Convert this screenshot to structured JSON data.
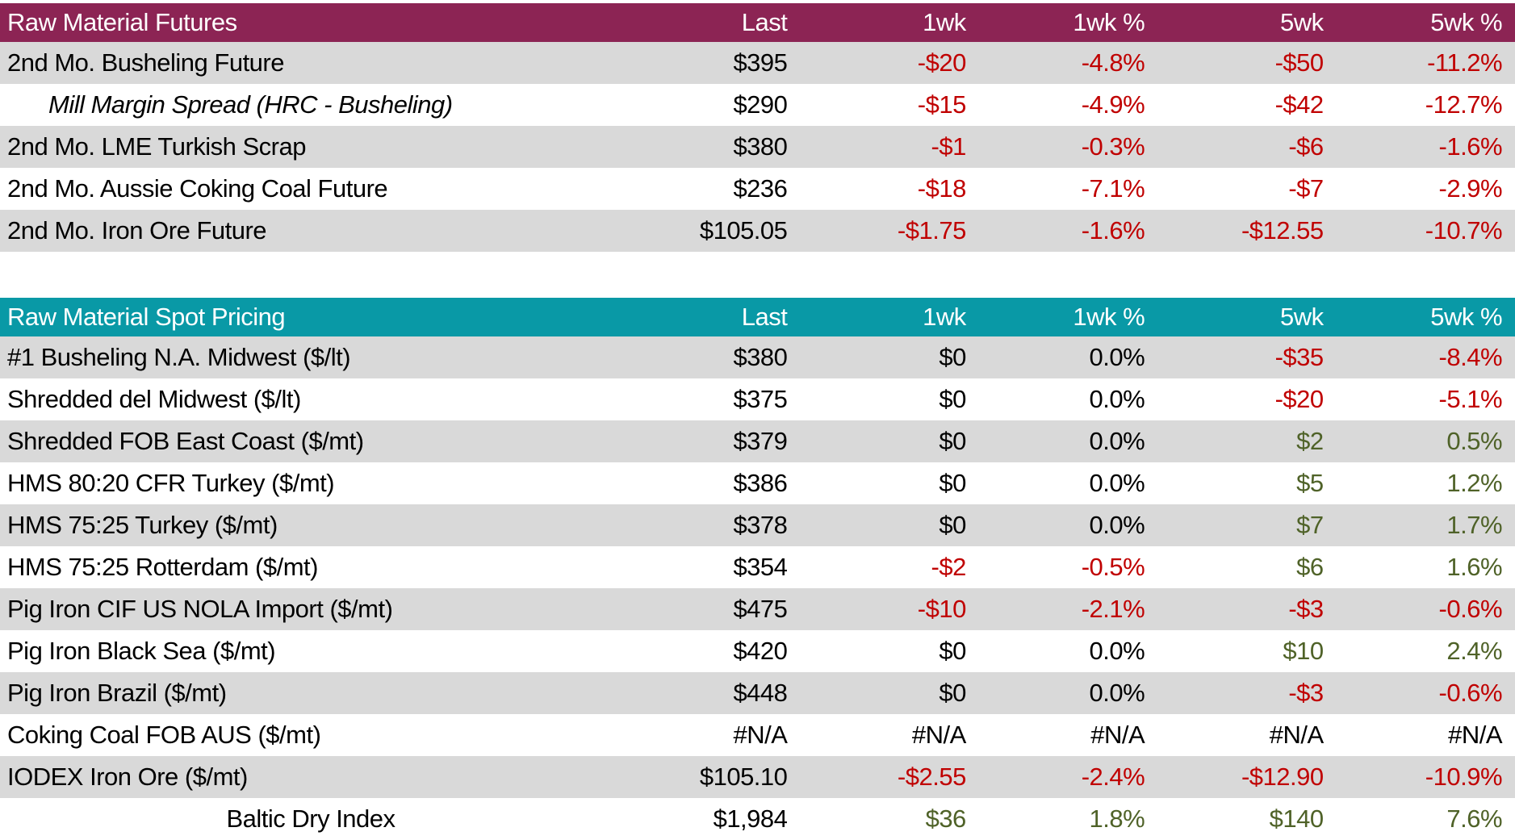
{
  "colors": {
    "futures_header_bg": "#8C2454",
    "spot_header_bg": "#0999A6",
    "shaded_row_bg": "#D9D9D9",
    "plain_row_bg": "#FFFFFF",
    "negative_text": "#C00000",
    "positive_text": "#4F6228",
    "neutral_text": "#000000",
    "header_text": "#FFFFFF"
  },
  "tables": [
    {
      "title": "Raw Material Futures",
      "header_bg": "#8C2454",
      "columns": [
        "Last",
        "1wk",
        "1wk %",
        "5wk",
        "5wk %"
      ],
      "rows": [
        {
          "label": "2nd Mo. Busheling Future",
          "style": "normal",
          "shaded": true,
          "cells": [
            {
              "t": "$395",
              "c": "black"
            },
            {
              "t": "-$20",
              "c": "red"
            },
            {
              "t": "-4.8%",
              "c": "red"
            },
            {
              "t": "-$50",
              "c": "red"
            },
            {
              "t": "-11.2%",
              "c": "red"
            }
          ]
        },
        {
          "label": "Mill Margin Spread (HRC - Busheling)",
          "style": "italic-indent",
          "shaded": false,
          "cells": [
            {
              "t": "$290",
              "c": "black"
            },
            {
              "t": "-$15",
              "c": "red"
            },
            {
              "t": "-4.9%",
              "c": "red"
            },
            {
              "t": "-$42",
              "c": "red"
            },
            {
              "t": "-12.7%",
              "c": "red"
            }
          ]
        },
        {
          "label": "2nd Mo. LME Turkish Scrap",
          "style": "normal",
          "shaded": true,
          "cells": [
            {
              "t": "$380",
              "c": "black"
            },
            {
              "t": "-$1",
              "c": "red"
            },
            {
              "t": "-0.3%",
              "c": "red"
            },
            {
              "t": "-$6",
              "c": "red"
            },
            {
              "t": "-1.6%",
              "c": "red"
            }
          ]
        },
        {
          "label": "2nd Mo. Aussie Coking Coal Future",
          "style": "normal",
          "shaded": false,
          "cells": [
            {
              "t": "$236",
              "c": "black"
            },
            {
              "t": "-$18",
              "c": "red"
            },
            {
              "t": "-7.1%",
              "c": "red"
            },
            {
              "t": "-$7",
              "c": "red"
            },
            {
              "t": "-2.9%",
              "c": "red"
            }
          ]
        },
        {
          "label": "2nd Mo. Iron Ore Future",
          "style": "normal",
          "shaded": true,
          "cells": [
            {
              "t": "$105.05",
              "c": "black"
            },
            {
              "t": "-$1.75",
              "c": "red"
            },
            {
              "t": "-1.6%",
              "c": "red"
            },
            {
              "t": "-$12.55",
              "c": "red"
            },
            {
              "t": "-10.7%",
              "c": "red"
            }
          ]
        }
      ]
    },
    {
      "title": "Raw Material Spot Pricing",
      "header_bg": "#0999A6",
      "columns": [
        "Last",
        "1wk",
        "1wk %",
        "5wk",
        "5wk %"
      ],
      "rows": [
        {
          "label": "#1 Busheling N.A. Midwest ($/lt)",
          "style": "normal",
          "shaded": true,
          "cells": [
            {
              "t": "$380",
              "c": "black"
            },
            {
              "t": "$0",
              "c": "black"
            },
            {
              "t": "0.0%",
              "c": "black"
            },
            {
              "t": "-$35",
              "c": "red"
            },
            {
              "t": "-8.4%",
              "c": "red"
            }
          ]
        },
        {
          "label": "Shredded del  Midwest ($/lt)",
          "style": "normal",
          "shaded": false,
          "cells": [
            {
              "t": "$375",
              "c": "black"
            },
            {
              "t": "$0",
              "c": "black"
            },
            {
              "t": "0.0%",
              "c": "black"
            },
            {
              "t": "-$20",
              "c": "red"
            },
            {
              "t": "-5.1%",
              "c": "red"
            }
          ]
        },
        {
          "label": "Shredded FOB East Coast ($/mt)",
          "style": "normal",
          "shaded": true,
          "cells": [
            {
              "t": "$379",
              "c": "black"
            },
            {
              "t": "$0",
              "c": "black"
            },
            {
              "t": "0.0%",
              "c": "black"
            },
            {
              "t": "$2",
              "c": "green"
            },
            {
              "t": "0.5%",
              "c": "green"
            }
          ]
        },
        {
          "label": "HMS 80:20 CFR Turkey ($/mt)",
          "style": "normal",
          "shaded": false,
          "cells": [
            {
              "t": "$386",
              "c": "black"
            },
            {
              "t": "$0",
              "c": "black"
            },
            {
              "t": "0.0%",
              "c": "black"
            },
            {
              "t": "$5",
              "c": "green"
            },
            {
              "t": "1.2%",
              "c": "green"
            }
          ]
        },
        {
          "label": "HMS 75:25 Turkey ($/mt)",
          "style": "normal",
          "shaded": true,
          "cells": [
            {
              "t": "$378",
              "c": "black"
            },
            {
              "t": "$0",
              "c": "black"
            },
            {
              "t": "0.0%",
              "c": "black"
            },
            {
              "t": "$7",
              "c": "green"
            },
            {
              "t": "1.7%",
              "c": "green"
            }
          ]
        },
        {
          "label": "HMS 75:25 Rotterdam ($/mt)",
          "style": "normal",
          "shaded": false,
          "cells": [
            {
              "t": "$354",
              "c": "black"
            },
            {
              "t": "-$2",
              "c": "red"
            },
            {
              "t": "-0.5%",
              "c": "red"
            },
            {
              "t": "$6",
              "c": "green"
            },
            {
              "t": "1.6%",
              "c": "green"
            }
          ]
        },
        {
          "label": "Pig Iron CIF US NOLA Import ($/mt)",
          "style": "normal",
          "shaded": true,
          "cells": [
            {
              "t": "$475",
              "c": "black"
            },
            {
              "t": "-$10",
              "c": "red"
            },
            {
              "t": "-2.1%",
              "c": "red"
            },
            {
              "t": "-$3",
              "c": "red"
            },
            {
              "t": "-0.6%",
              "c": "red"
            }
          ]
        },
        {
          "label": "Pig Iron Black Sea ($/mt)",
          "style": "normal",
          "shaded": false,
          "cells": [
            {
              "t": "$420",
              "c": "black"
            },
            {
              "t": "$0",
              "c": "black"
            },
            {
              "t": "0.0%",
              "c": "black"
            },
            {
              "t": "$10",
              "c": "green"
            },
            {
              "t": "2.4%",
              "c": "green"
            }
          ]
        },
        {
          "label": "Pig Iron Brazil ($/mt)",
          "style": "normal",
          "shaded": true,
          "cells": [
            {
              "t": "$448",
              "c": "black"
            },
            {
              "t": "$0",
              "c": "black"
            },
            {
              "t": "0.0%",
              "c": "black"
            },
            {
              "t": "-$3",
              "c": "red"
            },
            {
              "t": "-0.6%",
              "c": "red"
            }
          ]
        },
        {
          "label": "Coking Coal FOB AUS ($/mt)",
          "style": "normal",
          "shaded": false,
          "cells": [
            {
              "t": "#N/A",
              "c": "black"
            },
            {
              "t": "#N/A",
              "c": "black"
            },
            {
              "t": "#N/A",
              "c": "black"
            },
            {
              "t": "#N/A",
              "c": "black"
            },
            {
              "t": "#N/A",
              "c": "black"
            }
          ]
        },
        {
          "label": "IODEX  Iron Ore ($/mt)",
          "style": "normal",
          "shaded": true,
          "cells": [
            {
              "t": "$105.10",
              "c": "black"
            },
            {
              "t": "-$2.55",
              "c": "red"
            },
            {
              "t": "-2.4%",
              "c": "red"
            },
            {
              "t": "-$12.90",
              "c": "red"
            },
            {
              "t": "-10.9%",
              "c": "red"
            }
          ]
        },
        {
          "label": "Baltic Dry Index",
          "style": "center",
          "shaded": false,
          "cells": [
            {
              "t": "$1,984",
              "c": "black"
            },
            {
              "t": "$36",
              "c": "green"
            },
            {
              "t": "1.8%",
              "c": "green"
            },
            {
              "t": "$140",
              "c": "green"
            },
            {
              "t": "7.6%",
              "c": "green"
            }
          ]
        }
      ]
    }
  ]
}
